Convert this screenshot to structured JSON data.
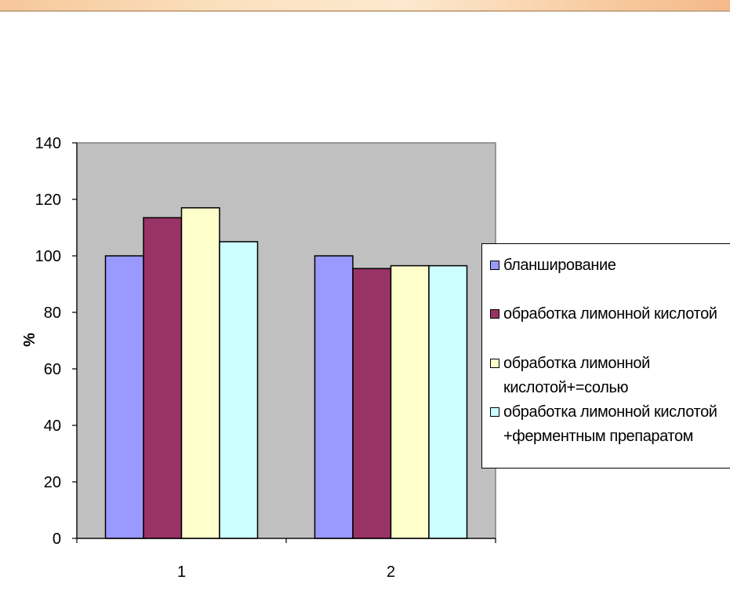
{
  "chart_data": {
    "type": "bar",
    "categories": [
      "1",
      "2"
    ],
    "series": [
      {
        "name": "бланширование",
        "values": [
          100,
          100
        ],
        "color": "#9999ff"
      },
      {
        "name": "обработка лимонной кислотой",
        "values": [
          113.5,
          95.5
        ],
        "color": "#993366"
      },
      {
        "name": "обработка лимонной\nкислотой+=солью",
        "values": [
          117,
          96.5
        ],
        "color": "#ffffcc"
      },
      {
        "name": "обработка лимонной кислотой\n+ферментным препаратом",
        "values": [
          105,
          96.5
        ],
        "color": "#ccffff"
      }
    ],
    "ylabel": "%",
    "xlabel": "",
    "ylim": [
      0,
      140
    ],
    "yticks": [
      "0",
      "20",
      "40",
      "60",
      "80",
      "100",
      "120",
      "140"
    ],
    "plot_background": "#c0c0c0",
    "grid": false,
    "legend_position": "right"
  }
}
